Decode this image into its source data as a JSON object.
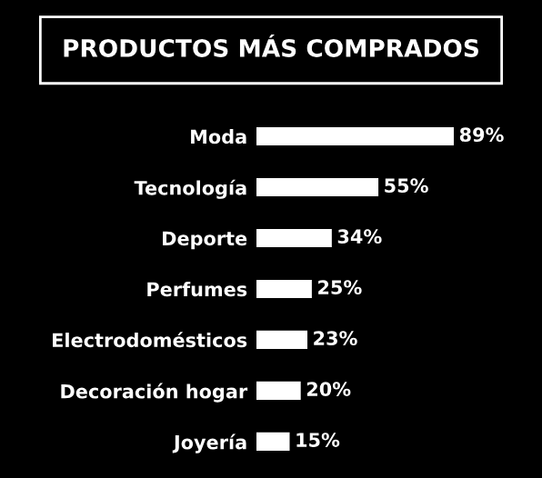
{
  "chart_data": {
    "type": "bar",
    "orientation": "horizontal",
    "title": "PRODUCTOS MÁS COMPRADOS",
    "categories": [
      "Moda",
      "Tecnología",
      "Deporte",
      "Perfumes",
      "Electrodomésticos",
      "Decoración hogar",
      "Joyería"
    ],
    "values": [
      89,
      55,
      34,
      25,
      23,
      20,
      15
    ],
    "value_labels": [
      "89%",
      "55%",
      "34%",
      "25%",
      "23%",
      "20%",
      "15%"
    ],
    "color": "#ffffff",
    "grid": false,
    "legend": false,
    "tick_labels": "y"
  }
}
